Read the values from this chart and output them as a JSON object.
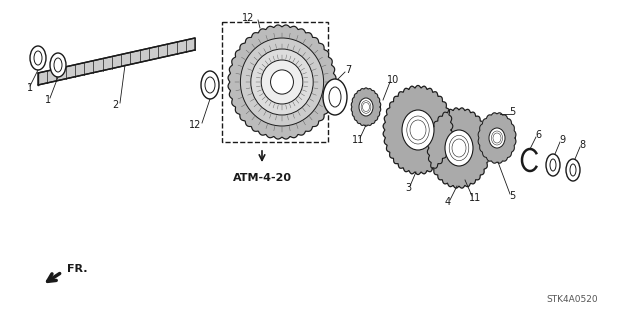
{
  "background_color": "#ffffff",
  "diagram_color": "#1a1a1a",
  "atm_label": "ATM-4-20",
  "fr_label": "FR.",
  "code_label": "STK4A0520",
  "figsize": [
    6.4,
    3.19
  ],
  "dpi": 100
}
